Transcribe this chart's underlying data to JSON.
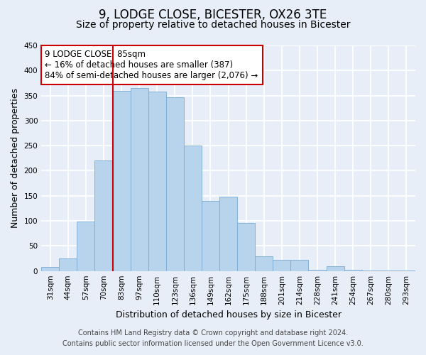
{
  "title": "9, LODGE CLOSE, BICESTER, OX26 3TE",
  "subtitle": "Size of property relative to detached houses in Bicester",
  "xlabel": "Distribution of detached houses by size in Bicester",
  "ylabel": "Number of detached properties",
  "bar_labels": [
    "31sqm",
    "44sqm",
    "57sqm",
    "70sqm",
    "83sqm",
    "97sqm",
    "110sqm",
    "123sqm",
    "136sqm",
    "149sqm",
    "162sqm",
    "175sqm",
    "188sqm",
    "201sqm",
    "214sqm",
    "228sqm",
    "241sqm",
    "254sqm",
    "267sqm",
    "280sqm",
    "293sqm"
  ],
  "bar_values": [
    8,
    25,
    98,
    220,
    360,
    365,
    358,
    347,
    250,
    140,
    148,
    96,
    30,
    22,
    22,
    3,
    10,
    2,
    1,
    1,
    1
  ],
  "bar_color": "#b8d4ec",
  "bar_edge_color": "#7aaad4",
  "vline_x_index": 4,
  "vline_color": "#cc0000",
  "annotation_text": "9 LODGE CLOSE: 85sqm\n← 16% of detached houses are smaller (387)\n84% of semi-detached houses are larger (2,076) →",
  "annotation_box_color": "#ffffff",
  "annotation_box_edge": "#cc0000",
  "ylim": [
    0,
    450
  ],
  "yticks": [
    0,
    50,
    100,
    150,
    200,
    250,
    300,
    350,
    400,
    450
  ],
  "footer_line1": "Contains HM Land Registry data © Crown copyright and database right 2024.",
  "footer_line2": "Contains public sector information licensed under the Open Government Licence v3.0.",
  "bg_color": "#e8eef8",
  "plot_bg_color": "#e8eef8",
  "grid_color": "#ffffff",
  "title_fontsize": 12,
  "subtitle_fontsize": 10,
  "axis_label_fontsize": 9,
  "tick_fontsize": 7.5,
  "annotation_fontsize": 8.5,
  "footer_fontsize": 7
}
